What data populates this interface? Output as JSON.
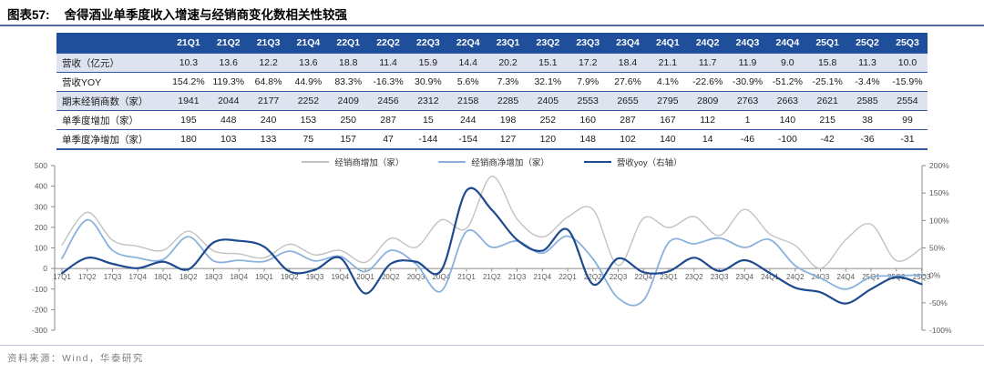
{
  "figure": {
    "label": "图表57:",
    "title": "舍得酒业单季度收入增速与经销商变化数相关性较强",
    "source": "资料来源：Wind，华泰研究"
  },
  "colors": {
    "table_header_bg": "#1f4e9b",
    "table_band_bg": "#dde3ef",
    "table_border": "#30599f",
    "series_gray": "#c2c2c2",
    "series_lightblue": "#8ab1dd",
    "series_darkblue": "#1e4a8f",
    "axis_line": "#8c8c8c",
    "tick_text": "#595959"
  },
  "table": {
    "corner_label": "",
    "columns": [
      "21Q1",
      "21Q2",
      "21Q3",
      "21Q4",
      "22Q1",
      "22Q2",
      "22Q3",
      "22Q4",
      "23Q1",
      "23Q2",
      "23Q3",
      "23Q4",
      "24Q1",
      "24Q2",
      "24Q3",
      "24Q4",
      "25Q1",
      "25Q2",
      "25Q3"
    ],
    "rows": [
      {
        "label": "营收（亿元）",
        "band": true,
        "values": [
          "10.3",
          "13.6",
          "12.2",
          "13.6",
          "18.8",
          "11.4",
          "15.9",
          "14.4",
          "20.2",
          "15.1",
          "17.2",
          "18.4",
          "21.1",
          "11.7",
          "11.9",
          "9.0",
          "15.8",
          "11.3",
          "10.0"
        ]
      },
      {
        "label": "营收YOY",
        "band": false,
        "values": [
          "154.2%",
          "119.3%",
          "64.8%",
          "44.9%",
          "83.3%",
          "-16.3%",
          "30.9%",
          "5.6%",
          "7.3%",
          "32.1%",
          "7.9%",
          "27.6%",
          "4.1%",
          "-22.6%",
          "-30.9%",
          "-51.2%",
          "-25.1%",
          "-3.4%",
          "-15.9%"
        ]
      },
      {
        "label": "期末经销商数（家）",
        "band": true,
        "values": [
          "1941",
          "2044",
          "2177",
          "2252",
          "2409",
          "2456",
          "2312",
          "2158",
          "2285",
          "2405",
          "2553",
          "2655",
          "2795",
          "2809",
          "2763",
          "2663",
          "2621",
          "2585",
          "2554"
        ]
      },
      {
        "label": "单季度增加（家）",
        "band": false,
        "values": [
          "195",
          "448",
          "240",
          "153",
          "250",
          "287",
          "15",
          "244",
          "198",
          "252",
          "160",
          "287",
          "167",
          "112",
          "1",
          "140",
          "215",
          "38",
          "99"
        ]
      },
      {
        "label": "单季度净增加（家）",
        "band": false,
        "values": [
          "180",
          "103",
          "133",
          "75",
          "157",
          "47",
          "-144",
          "-154",
          "127",
          "120",
          "148",
          "102",
          "140",
          "14",
          "-46",
          "-100",
          "-42",
          "-36",
          "-31"
        ]
      }
    ]
  },
  "chart_data": {
    "type": "line",
    "title": "",
    "legend_position": "top",
    "grid": false,
    "x": [
      "17Q1",
      "17Q2",
      "17Q3",
      "17Q4",
      "18Q1",
      "18Q2",
      "18Q3",
      "18Q4",
      "19Q1",
      "19Q2",
      "19Q3",
      "19Q4",
      "20Q1",
      "20Q2",
      "20Q3",
      "20Q4",
      "21Q1",
      "21Q2",
      "21Q3",
      "21Q4",
      "22Q1",
      "22Q2",
      "22Q3",
      "22Q4",
      "23Q1",
      "23Q2",
      "23Q3",
      "23Q4",
      "24Q1",
      "24Q2",
      "24Q3",
      "24Q4",
      "25Q1",
      "25Q2",
      "25Q3"
    ],
    "left_axis": {
      "min": -300,
      "max": 500,
      "step": 100,
      "ticks": [
        "500",
        "400",
        "300",
        "200",
        "100",
        "0",
        "-100",
        "-200",
        "-300"
      ]
    },
    "right_axis": {
      "min": -100,
      "max": 200,
      "step": 50,
      "ticks": [
        "200%",
        "150%",
        "100%",
        "50%",
        "0%",
        "-50%",
        "-100%"
      ]
    },
    "series": [
      {
        "name": "经销商增加（家）",
        "axis": "left",
        "color": "#c2c2c2",
        "width": 1.4,
        "values": [
          114,
          273,
          137,
          108,
          88,
          181,
          85,
          71,
          52,
          118,
          66,
          88,
          30,
          147,
          103,
          236,
          195,
          448,
          240,
          153,
          250,
          287,
          15,
          244,
          198,
          252,
          160,
          287,
          167,
          112,
          1,
          140,
          215,
          38,
          99
        ]
      },
      {
        "name": "经销商净增加（家）",
        "axis": "left",
        "color": "#8ab1dd",
        "width": 1.8,
        "values": [
          49,
          236,
          88,
          52,
          44,
          155,
          37,
          40,
          34,
          84,
          37,
          59,
          -15,
          88,
          22,
          -110,
          180,
          103,
          133,
          75,
          157,
          47,
          -144,
          -154,
          127,
          120,
          148,
          102,
          140,
          14,
          -46,
          -100,
          -42,
          -36,
          -31
        ]
      },
      {
        "name": "营收yoy（右轴）",
        "axis": "right",
        "color": "#1e4a8f",
        "width": 2.2,
        "values": [
          4,
          32,
          21,
          13,
          25,
          11,
          60,
          63,
          52,
          7,
          10,
          32,
          -33,
          21,
          25,
          9,
          154.2,
          119.3,
          64.8,
          44.9,
          83.3,
          -16.3,
          30.9,
          5.6,
          7.3,
          32.1,
          7.9,
          27.6,
          4.1,
          -22.6,
          -30.9,
          -51.2,
          -25.1,
          -3.4,
          -15.9
        ]
      }
    ]
  }
}
